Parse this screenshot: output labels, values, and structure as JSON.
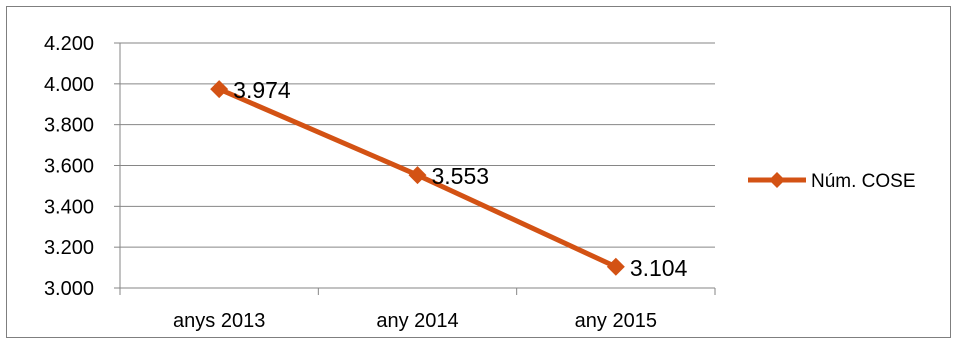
{
  "chart_data": {
    "type": "line",
    "categories": [
      "anys 2013",
      "any 2014",
      "any 2015"
    ],
    "series": [
      {
        "name": "Núm. COSE",
        "values": [
          3974,
          3553,
          3104
        ],
        "data_labels": [
          "3.974",
          "3.553",
          "3.104"
        ],
        "color": "#d35214",
        "marker": "diamond"
      }
    ],
    "y_ticks": [
      {
        "value": 3000,
        "label": "3.000"
      },
      {
        "value": 3200,
        "label": "3.200"
      },
      {
        "value": 3400,
        "label": "3.400"
      },
      {
        "value": 3600,
        "label": "3.600"
      },
      {
        "value": 3800,
        "label": "3.800"
      },
      {
        "value": 4000,
        "label": "4.000"
      },
      {
        "value": 4200,
        "label": "4.200"
      }
    ],
    "ylim": [
      3000,
      4200
    ],
    "grid": true,
    "legend_position": "right",
    "title": "",
    "xlabel": "",
    "ylabel": ""
  }
}
